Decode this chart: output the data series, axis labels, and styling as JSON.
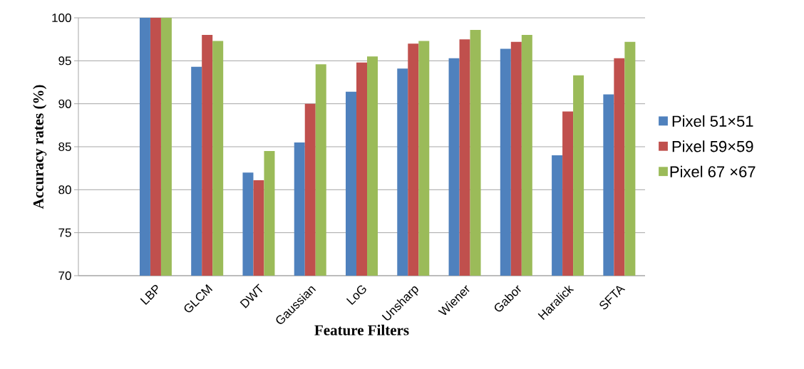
{
  "chart_data": {
    "type": "bar",
    "xlabel": "Feature Filters",
    "ylabel": "Accuracy rates (%)",
    "categories": [
      null,
      "LBP",
      "GLCM",
      "DWT",
      "Gaussian",
      "LoG",
      "Unsharp",
      "Wiener",
      "Gabor",
      "Haralick",
      "SFTA"
    ],
    "series": [
      {
        "name": "Pixel 51×51",
        "color": "#4f81bd",
        "values": [
          null,
          100,
          94.3,
          82.0,
          85.5,
          91.4,
          94.1,
          95.3,
          96.4,
          84.0,
          91.1
        ]
      },
      {
        "name": "Pixel 59×59",
        "color": "#c0504d",
        "values": [
          null,
          100,
          98.0,
          81.1,
          90.0,
          94.8,
          97.0,
          97.5,
          97.2,
          89.1,
          95.3
        ]
      },
      {
        "name": "Pixel 67 ×67",
        "color": "#9bbb59",
        "values": [
          null,
          100,
          97.3,
          84.5,
          94.6,
          95.5,
          97.3,
          98.6,
          98.0,
          93.3,
          97.2
        ]
      }
    ],
    "ylim": [
      70,
      100
    ],
    "yticks": [
      70,
      75,
      80,
      85,
      90,
      95,
      100
    ],
    "grid": "y",
    "legend": "right"
  }
}
